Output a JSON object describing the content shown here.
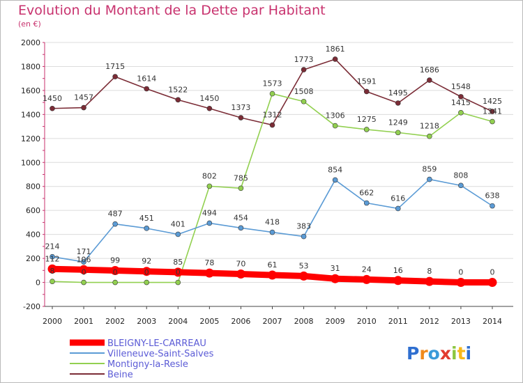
{
  "title": "Evolution du Montant de la Dette par Habitant",
  "unit": "(en €)",
  "logo": "Proxiti",
  "chart_data": {
    "type": "line",
    "title": "Evolution du Montant de la Dette par Habitant",
    "subtitle": "(en €)",
    "xlabel": "",
    "ylabel": "",
    "x": [
      "2000",
      "2001",
      "2002",
      "2003",
      "2004",
      "2005",
      "2006",
      "2007",
      "2008",
      "2009",
      "2010",
      "2011",
      "2012",
      "2013",
      "2014"
    ],
    "ylim": [
      -200,
      2000
    ],
    "yticks": [
      -200,
      0,
      200,
      400,
      600,
      800,
      1000,
      1200,
      1400,
      1600,
      1800,
      2000
    ],
    "grid": "horizontal",
    "legend": "bottom-left",
    "series": [
      {
        "name": "BLEIGNY-LE-CARREAU",
        "color": "#ff0000",
        "values": [
          112,
          106,
          99,
          92,
          85,
          78,
          70,
          61,
          53,
          31,
          24,
          16,
          8,
          0,
          0
        ]
      },
      {
        "name": "Villeneuve-Saint-Salves",
        "color": "#5b9bd5",
        "values": [
          214,
          171,
          487,
          451,
          401,
          494,
          454,
          418,
          383,
          854,
          662,
          616,
          859,
          808,
          638
        ]
      },
      {
        "name": "Montigny-la-Resle",
        "color": "#92d050",
        "values": [
          8,
          0,
          0,
          0,
          0,
          802,
          785,
          1573,
          1508,
          1306,
          1275,
          1249,
          1218,
          1415,
          1341
        ]
      },
      {
        "name": "Beine",
        "color": "#7b2c36",
        "values": [
          1450,
          1457,
          1715,
          1614,
          1522,
          1450,
          1373,
          1312,
          1773,
          1861,
          1591,
          1495,
          1686,
          1548,
          1425
        ]
      }
    ],
    "data_labels": [
      {
        "series": "BLEIGNY-LE-CARREAU",
        "labels": [
          "112",
          "106",
          "99",
          "92",
          "85",
          "78",
          "70",
          "61",
          "53",
          "31",
          "24",
          "16",
          "8",
          "0",
          "0"
        ]
      },
      {
        "series": "Villeneuve-Saint-Salves",
        "labels": [
          "214",
          "171",
          "487",
          "451",
          "401",
          "494",
          "454",
          "418",
          "383",
          "854",
          "662",
          "616",
          "859",
          "808",
          "638"
        ]
      },
      {
        "series": "Montigny-la-Resle",
        "labels": [
          "8",
          "0",
          "0",
          "0",
          "0",
          "802",
          "785",
          "1573",
          "1508",
          "1306",
          "1275",
          "1249",
          "1218",
          "1415",
          "1341"
        ]
      },
      {
        "series": "Beine",
        "labels": [
          "1450",
          "1457",
          "1715",
          "1614",
          "1522",
          "1450",
          "1373",
          "1312",
          "1773",
          "1861",
          "1591",
          "1495",
          "1686",
          "1548",
          "1425"
        ]
      }
    ]
  }
}
